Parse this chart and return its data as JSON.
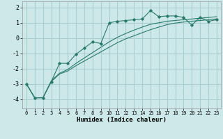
{
  "background_color": "#cce8e8",
  "grid_color": "#aacece",
  "line_color": "#2a7a6a",
  "x_label": "Humidex (Indice chaleur)",
  "x_ticks": [
    0,
    1,
    2,
    3,
    4,
    5,
    6,
    7,
    8,
    9,
    10,
    11,
    12,
    13,
    14,
    15,
    16,
    17,
    18,
    19,
    20,
    21,
    22,
    23
  ],
  "y_ticks": [
    -4,
    -3,
    -2,
    -1,
    0,
    1,
    2
  ],
  "ylim": [
    -4.6,
    2.4
  ],
  "xlim": [
    -0.5,
    23.5
  ],
  "line1_x": [
    0,
    1,
    2,
    3,
    4,
    5,
    6,
    7,
    8,
    9,
    10,
    11,
    12,
    13,
    14,
    15,
    16,
    17,
    18,
    19,
    20,
    21,
    22,
    23
  ],
  "line1_y": [
    -3.0,
    -3.9,
    -3.9,
    -2.85,
    -1.65,
    -1.65,
    -1.05,
    -0.65,
    -0.25,
    -0.35,
    1.0,
    1.1,
    1.15,
    1.2,
    1.25,
    1.8,
    1.4,
    1.45,
    1.45,
    1.35,
    0.85,
    1.35,
    1.1,
    1.2
  ],
  "line2_x": [
    0,
    1,
    2,
    3,
    4,
    5,
    6,
    7,
    8,
    9,
    10,
    11,
    12,
    13,
    14,
    15,
    16,
    17,
    18,
    19,
    20,
    21,
    22,
    23
  ],
  "line2_y": [
    -3.0,
    -3.9,
    -3.9,
    -2.85,
    -2.35,
    -2.15,
    -1.8,
    -1.5,
    -1.2,
    -0.9,
    -0.6,
    -0.3,
    -0.05,
    0.15,
    0.35,
    0.55,
    0.72,
    0.88,
    0.98,
    1.05,
    1.1,
    1.15,
    1.2,
    1.25
  ],
  "line3_x": [
    0,
    1,
    2,
    3,
    4,
    5,
    6,
    7,
    8,
    9,
    10,
    11,
    12,
    13,
    14,
    15,
    16,
    17,
    18,
    19,
    20,
    21,
    22,
    23
  ],
  "line3_y": [
    -3.0,
    -3.9,
    -3.9,
    -2.8,
    -2.3,
    -2.05,
    -1.65,
    -1.3,
    -0.95,
    -0.6,
    -0.25,
    0.05,
    0.3,
    0.52,
    0.72,
    0.9,
    1.0,
    1.1,
    1.15,
    1.2,
    1.25,
    1.3,
    1.35,
    1.4
  ]
}
